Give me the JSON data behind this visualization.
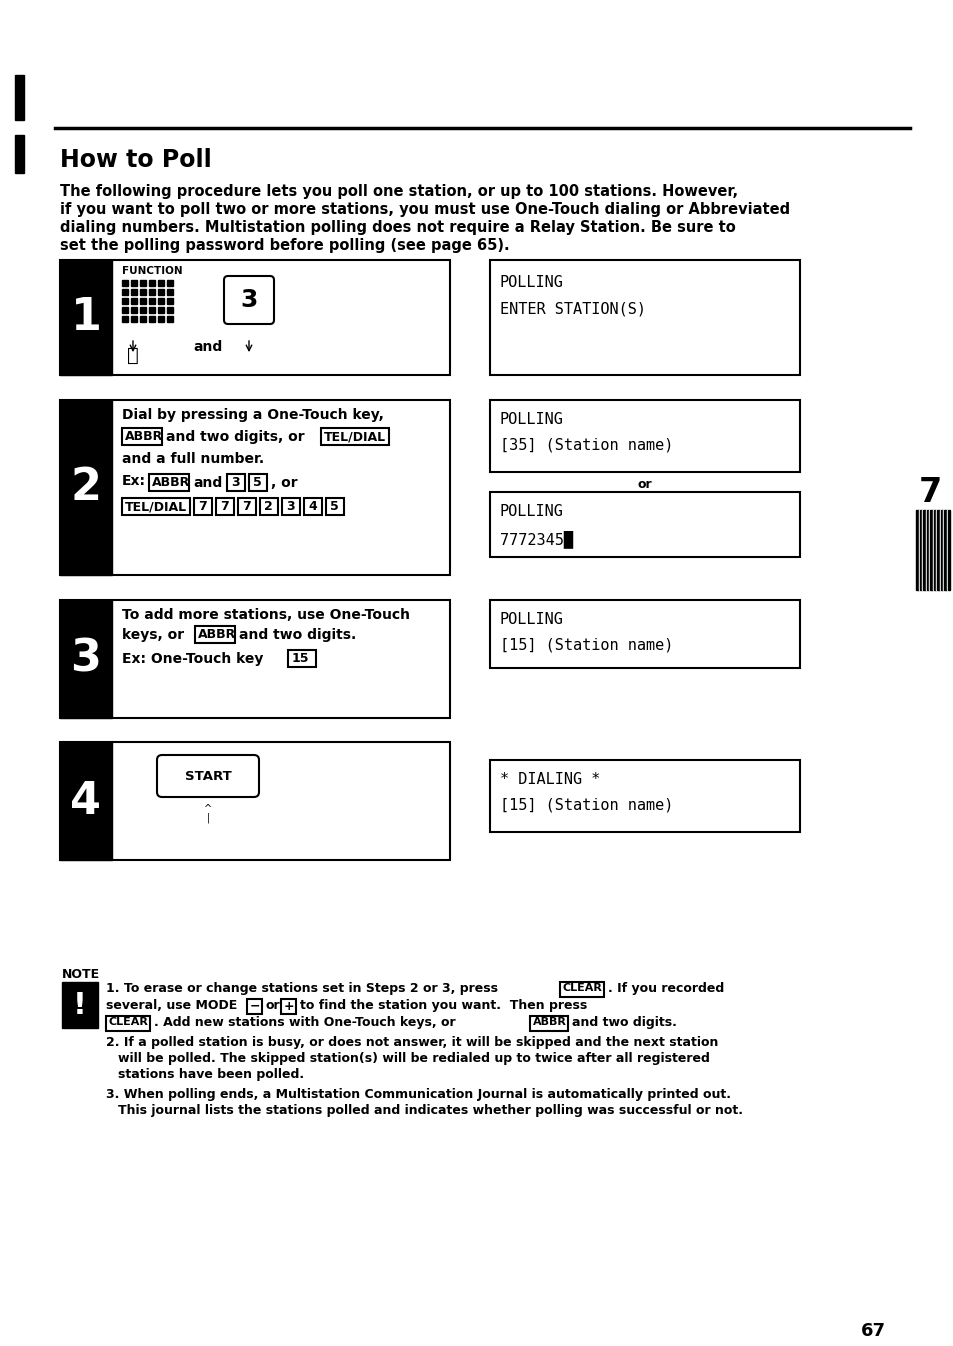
{
  "bg_color": "#ffffff",
  "title": "How to Poll",
  "intro_text_line1": "The following procedure lets you poll one station, or up to 100 stations. However,",
  "intro_text_line2": "if you want to poll two or more stations, you must use One-Touch dialing or Abbreviated",
  "intro_text_line3": "dialing numbers. Multistation polling does not require a Relay Station. Be sure to",
  "intro_text_line4": "set the polling password before polling (see page 65).",
  "page_number": "67",
  "chapter_number": "7"
}
